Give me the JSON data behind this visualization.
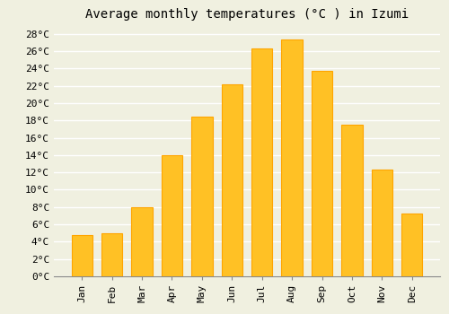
{
  "title": "Average monthly temperatures (°C ) in Izumi",
  "months": [
    "Jan",
    "Feb",
    "Mar",
    "Apr",
    "May",
    "Jun",
    "Jul",
    "Aug",
    "Sep",
    "Oct",
    "Nov",
    "Dec"
  ],
  "temperatures": [
    4.8,
    5.0,
    8.0,
    14.0,
    18.4,
    22.2,
    26.3,
    27.3,
    23.7,
    17.5,
    12.3,
    7.3
  ],
  "bar_color": "#FFC125",
  "bar_edge_color": "#FFA500",
  "background_color": "#F0F0E0",
  "grid_color": "#FFFFFF",
  "ylim": [
    0,
    29
  ],
  "ytick_step": 2,
  "title_fontsize": 10,
  "tick_fontsize": 8,
  "font_family": "monospace"
}
